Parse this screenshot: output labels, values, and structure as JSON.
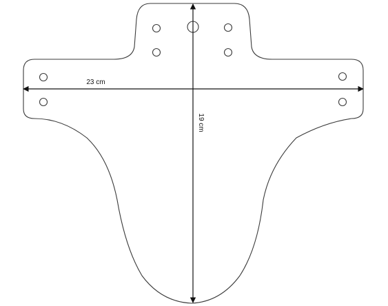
{
  "dimensions": {
    "width_label": "23 cm",
    "height_label": "19 cm"
  },
  "colors": {
    "outline": "#3a3a3a",
    "dimension": "#111111",
    "background": "#ffffff"
  }
}
